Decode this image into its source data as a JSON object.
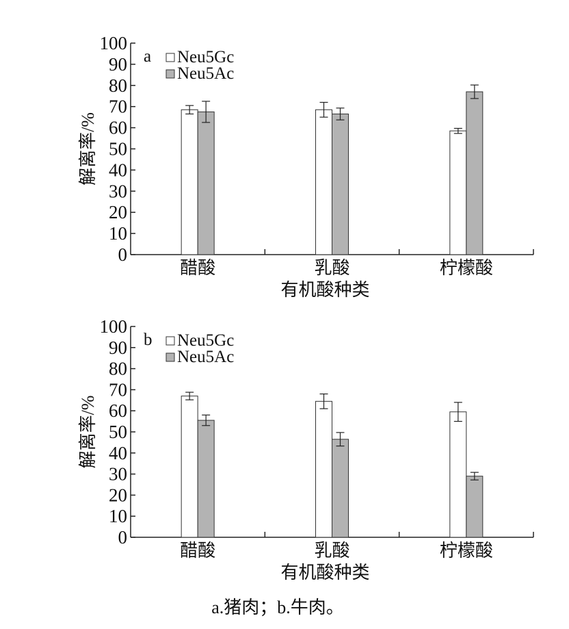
{
  "figure": {
    "caption": "a.猪肉；b.牛肉。",
    "colors": {
      "Neu5Gc": "#ffffff",
      "Neu5Ac": "#b3b3b3",
      "axis": "#222222"
    }
  },
  "chart_data": [
    {
      "type": "bar",
      "panel_label": "a",
      "xlabel": "有机酸种类",
      "ylabel": "解离率/%",
      "ylim": [
        0,
        100
      ],
      "yticks": [
        0,
        10,
        20,
        30,
        40,
        50,
        60,
        70,
        80,
        90,
        100
      ],
      "categories": [
        "醋酸",
        "乳酸",
        "柠檬酸"
      ],
      "legend_position": "top-left",
      "series": [
        {
          "name": "Neu5Gc",
          "values": [
            68.5,
            68.5,
            58.5
          ],
          "errors": [
            2.0,
            3.5,
            1.2
          ]
        },
        {
          "name": "Neu5Ac",
          "values": [
            67.5,
            66.5,
            77.0
          ],
          "errors": [
            5.0,
            2.8,
            3.2
          ]
        }
      ]
    },
    {
      "type": "bar",
      "panel_label": "b",
      "xlabel": "有机酸种类",
      "ylabel": "解离率/%",
      "ylim": [
        0,
        100
      ],
      "yticks": [
        0,
        10,
        20,
        30,
        40,
        50,
        60,
        70,
        80,
        90,
        100
      ],
      "categories": [
        "醋酸",
        "乳酸",
        "柠檬酸"
      ],
      "legend_position": "top-left",
      "series": [
        {
          "name": "Neu5Gc",
          "values": [
            67.0,
            64.5,
            59.5
          ],
          "errors": [
            1.8,
            3.5,
            4.5
          ]
        },
        {
          "name": "Neu5Ac",
          "values": [
            55.5,
            46.5,
            29.0
          ],
          "errors": [
            2.5,
            3.2,
            1.8
          ]
        }
      ]
    }
  ]
}
